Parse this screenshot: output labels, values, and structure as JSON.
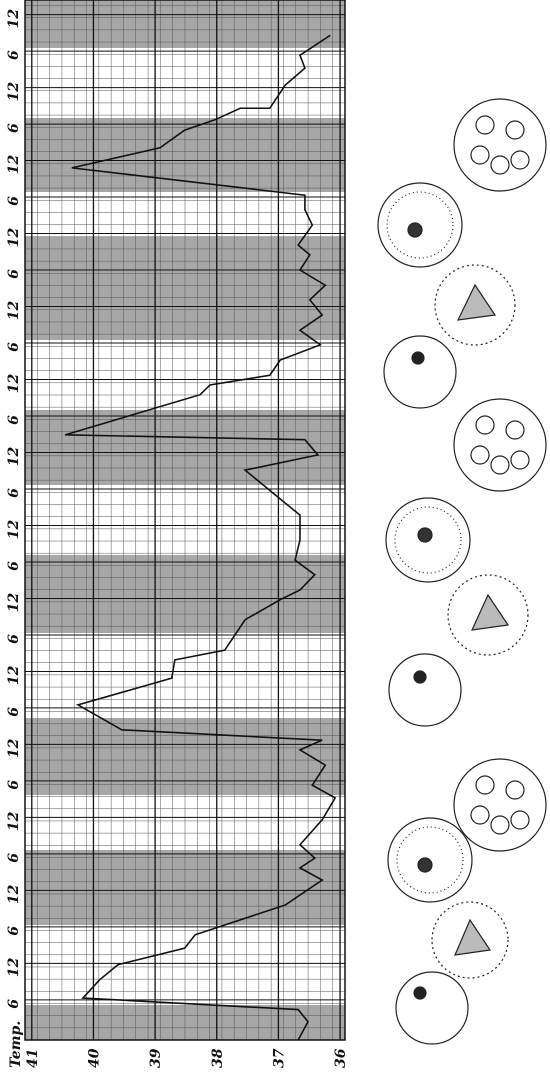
{
  "chart_data": {
    "type": "line",
    "ylabel": "Temp.",
    "x": [
      -6.6,
      -3.6,
      -1.6,
      0.3,
      3.3,
      5.8,
      8.5,
      10.7,
      15.6,
      19.7,
      21.7,
      23.3,
      25.5,
      29.6,
      33.2,
      35.3,
      38.6,
      41.1,
      42.7,
      44.4,
      48.5,
      52.9,
      55.9,
      57.5,
      62.5,
      65.8,
      67.4,
      69.9,
      72.3,
      75.6,
      79.7,
      87.1,
      89.6,
      92.1,
      92.9,
      99.5,
      101.1,
      102.7,
      105.2,
      107.7,
      110.1,
      112.6,
      115.1,
      117.5,
      120.0,
      122.5,
      124.1,
      127.4,
      129.9,
      132.3,
      136.8,
      140.1,
      143.0,
      144.7,
      146.6,
      146.6,
      150.4,
      153.2,
      155.3,
      158.6
    ],
    "series": [
      {
        "color": "#111111",
        "values": [
          36.68,
          36.52,
          36.68,
          40.17,
          39.9,
          39.6,
          38.52,
          38.35,
          36.89,
          36.29,
          36.65,
          36.41,
          36.65,
          36.29,
          36.08,
          36.45,
          36.24,
          36.65,
          36.29,
          39.54,
          40.25,
          38.73,
          38.68,
          37.87,
          37.54,
          36.97,
          36.65,
          36.41,
          36.73,
          36.65,
          36.65,
          37.54,
          36.36,
          36.57,
          40.46,
          38.27,
          38.11,
          37.14,
          36.97,
          36.32,
          36.65,
          36.29,
          36.49,
          36.24,
          36.65,
          36.49,
          36.68,
          36.45,
          36.57,
          36.57,
          40.35,
          38.92,
          38.52,
          38.03,
          37.62,
          37.14,
          36.89,
          36.57,
          36.65,
          36.16
        ]
      }
    ],
    "xlim": [
      -6.6,
      164.4
    ],
    "xticks": [
      {
        "value": 0,
        "label": "6"
      },
      {
        "value": 6,
        "label": "12"
      },
      {
        "value": 12,
        "label": "6"
      },
      {
        "value": 18,
        "label": "12"
      },
      {
        "value": 24,
        "label": "6"
      },
      {
        "value": 30,
        "label": "12"
      },
      {
        "value": 36,
        "label": "6"
      },
      {
        "value": 42,
        "label": "12"
      },
      {
        "value": 48,
        "label": "6"
      },
      {
        "value": 54,
        "label": "12"
      },
      {
        "value": 60,
        "label": "6"
      },
      {
        "value": 66,
        "label": "12"
      },
      {
        "value": 72,
        "label": "6"
      },
      {
        "value": 78,
        "label": "12"
      },
      {
        "value": 84,
        "label": "6"
      },
      {
        "value": 90,
        "label": "12"
      },
      {
        "value": 96,
        "label": "6"
      },
      {
        "value": 102,
        "label": "12"
      },
      {
        "value": 108,
        "label": "6"
      },
      {
        "value": 114,
        "label": "12"
      },
      {
        "value": 120,
        "label": "6"
      },
      {
        "value": 126,
        "label": "12"
      },
      {
        "value": 132,
        "label": "6"
      },
      {
        "value": 138,
        "label": "12"
      },
      {
        "value": 144,
        "label": "6"
      },
      {
        "value": 150,
        "label": "12"
      },
      {
        "value": 156,
        "label": "6"
      },
      {
        "value": 162,
        "label": "12"
      }
    ],
    "ylim": [
      35.92,
      41.11
    ],
    "yticks": [
      36,
      37,
      38,
      39,
      40,
      41
    ],
    "grid": true
  }
}
